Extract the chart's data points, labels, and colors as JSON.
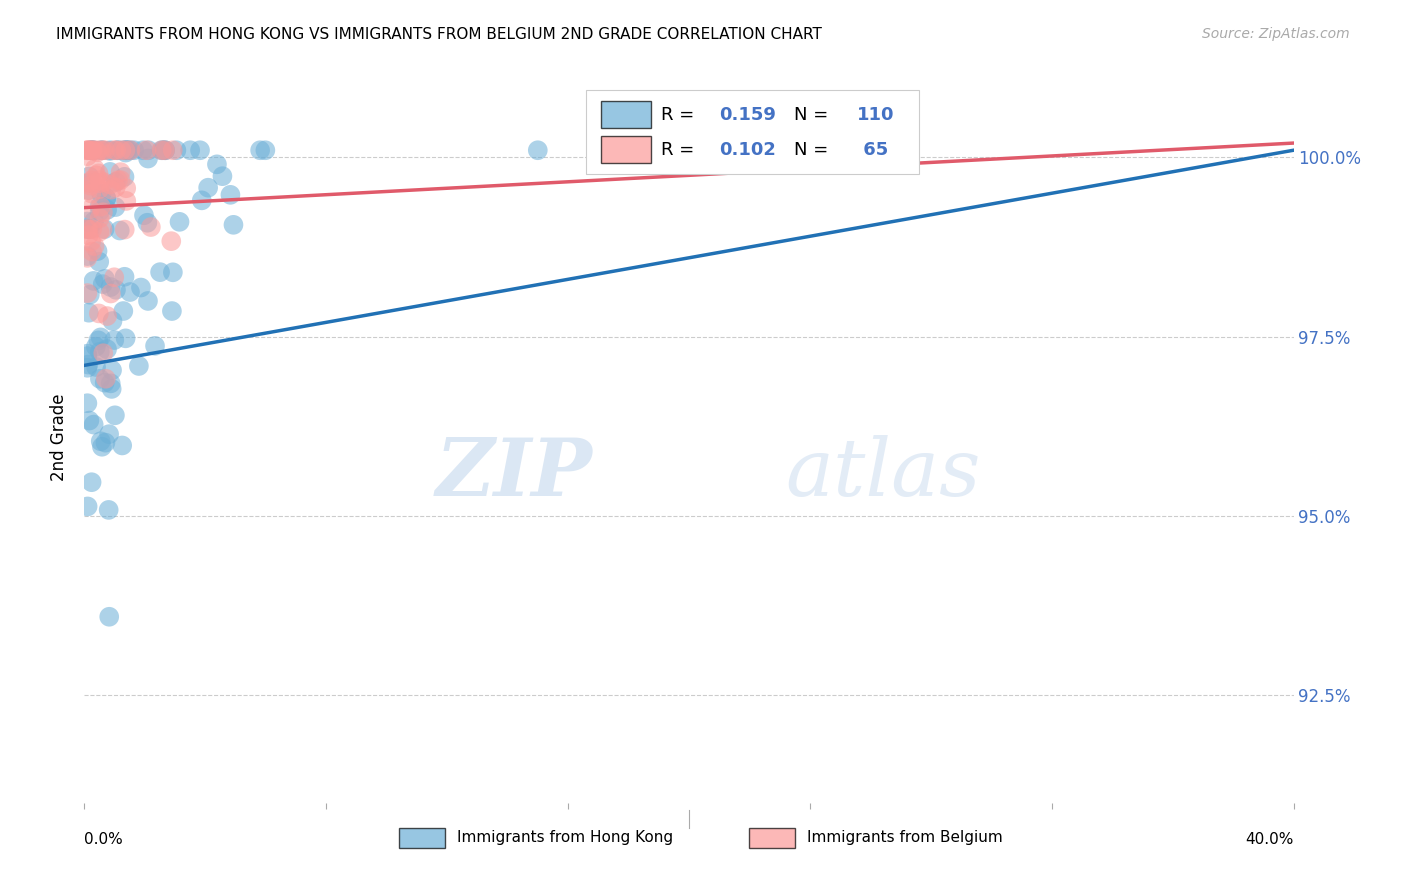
{
  "title": "IMMIGRANTS FROM HONG KONG VS IMMIGRANTS FROM BELGIUM 2ND GRADE CORRELATION CHART",
  "source": "Source: ZipAtlas.com",
  "ylabel": "2nd Grade",
  "yticks": [
    92.5,
    95.0,
    97.5,
    100.0
  ],
  "ytick_labels": [
    "92.5%",
    "95.0%",
    "97.5%",
    "100.0%"
  ],
  "blue_color": "#6baed6",
  "pink_color": "#fb9a99",
  "blue_line_color": "#2171b5",
  "pink_line_color": "#e05a6a",
  "R_blue": 0.159,
  "N_blue": 110,
  "R_pink": 0.102,
  "N_pink": 65,
  "legend_label_blue": "Immigrants from Hong Kong",
  "legend_label_pink": "Immigrants from Belgium",
  "watermark_zip": "ZIP",
  "watermark_atlas": "atlas",
  "blue_seed": 12345,
  "pink_seed": 99999,
  "xlim": [
    0.0,
    0.4
  ],
  "ylim": [
    91.0,
    101.2
  ],
  "blue_line_x": [
    0.0,
    0.4
  ],
  "blue_line_y": [
    97.1,
    100.1
  ],
  "pink_line_x": [
    0.0,
    0.4
  ],
  "pink_line_y": [
    99.3,
    100.2
  ]
}
